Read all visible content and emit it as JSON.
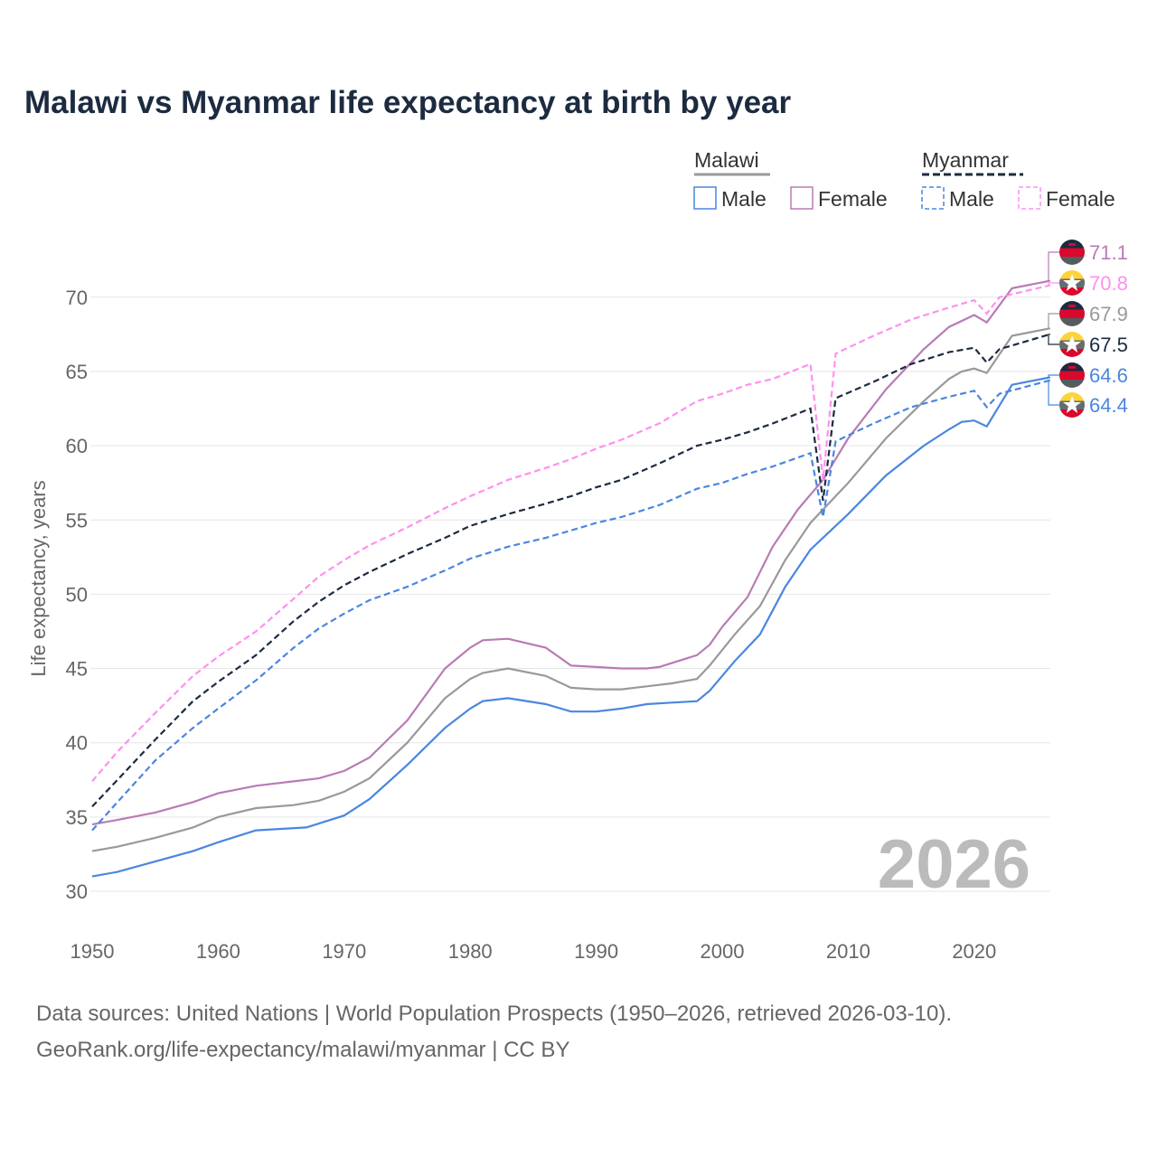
{
  "title": "Malawi vs Myanmar life expectancy at birth by year",
  "footer": {
    "line1": "Data sources: United Nations | World Population Prospects (1950–2026, retrieved 2026-03-10).",
    "line2": "GeoRank.org/life-expectancy/malawi/myanmar | CC BY"
  },
  "watermark": "2026",
  "legend": {
    "groups": [
      {
        "country": "Malawi",
        "items": [
          "Male",
          "Female"
        ],
        "style": "solid"
      },
      {
        "country": "Myanmar",
        "items": [
          "Male",
          "Female"
        ],
        "style": "dashed"
      }
    ]
  },
  "colors": {
    "male": "#4a86e0",
    "female_malawi": "#b87bb5",
    "female_myanmar": "#ff8ff0",
    "total_malawi": "#999999",
    "total_myanmar": "#1c2b40",
    "grid": "#e6e6e6",
    "axis_text": "#666666"
  },
  "chart_data": {
    "type": "line",
    "title": "Malawi vs Myanmar life expectancy at birth by year",
    "xlabel": "",
    "ylabel": "Life expectancy, years",
    "xlim": [
      1950,
      2026
    ],
    "ylim": [
      29,
      73
    ],
    "xticks": [
      1950,
      1960,
      1970,
      1980,
      1990,
      2000,
      2010,
      2020
    ],
    "yticks": [
      30,
      35,
      40,
      45,
      50,
      55,
      60,
      65,
      70
    ],
    "grid": true,
    "legend_position": "top-right",
    "series": [
      {
        "name": "Malawi Female",
        "country": "Malawi",
        "sex": "Female",
        "color": "#b87bb5",
        "dashed": false,
        "end_label": "71.1",
        "x": [
          1950,
          1952,
          1955,
          1958,
          1960,
          1963,
          1966,
          1968,
          1970,
          1972,
          1975,
          1978,
          1980,
          1981,
          1983,
          1986,
          1988,
          1990,
          1992,
          1994,
          1995,
          1998,
          1999,
          2000,
          2002,
          2004,
          2006,
          2008,
          2010,
          2013,
          2016,
          2018,
          2020,
          2021,
          2023,
          2026
        ],
        "y": [
          34.5,
          34.8,
          35.3,
          36.0,
          36.6,
          37.1,
          37.4,
          37.6,
          38.1,
          39.0,
          41.5,
          45.0,
          46.4,
          46.9,
          47.0,
          46.4,
          45.2,
          45.1,
          45.0,
          45.0,
          45.1,
          45.9,
          46.6,
          47.8,
          49.8,
          53.2,
          55.7,
          57.7,
          60.5,
          63.8,
          66.5,
          68.0,
          68.8,
          68.3,
          70.6,
          71.1
        ]
      },
      {
        "name": "Myanmar Female",
        "country": "Myanmar",
        "sex": "Female",
        "color": "#ff8ff0",
        "dashed": true,
        "end_label": "70.8",
        "x": [
          1950,
          1952,
          1955,
          1958,
          1960,
          1963,
          1966,
          1968,
          1970,
          1972,
          1975,
          1978,
          1980,
          1983,
          1986,
          1988,
          1990,
          1992,
          1995,
          1998,
          2000,
          2002,
          2004,
          2007,
          2008,
          2009,
          2012,
          2015,
          2018,
          2020,
          2021,
          2022,
          2026
        ],
        "y": [
          37.4,
          39.4,
          42.0,
          44.5,
          45.8,
          47.5,
          49.7,
          51.2,
          52.3,
          53.3,
          54.5,
          55.8,
          56.6,
          57.7,
          58.5,
          59.1,
          59.8,
          60.4,
          61.5,
          63.0,
          63.5,
          64.1,
          64.5,
          65.5,
          57.7,
          66.2,
          67.4,
          68.5,
          69.3,
          69.8,
          68.9,
          70.0,
          70.8
        ]
      },
      {
        "name": "Malawi",
        "country": "Malawi",
        "sex": "Total",
        "color": "#999999",
        "dashed": false,
        "end_label": "67.9",
        "x": [
          1950,
          1952,
          1955,
          1958,
          1960,
          1963,
          1966,
          1968,
          1970,
          1972,
          1975,
          1978,
          1980,
          1981,
          1983,
          1986,
          1988,
          1990,
          1992,
          1994,
          1996,
          1998,
          1999,
          2001,
          2003,
          2005,
          2007,
          2010,
          2013,
          2016,
          2018,
          2019,
          2020,
          2021,
          2023,
          2026
        ],
        "y": [
          32.7,
          33.0,
          33.6,
          34.3,
          35.0,
          35.6,
          35.8,
          36.1,
          36.7,
          37.6,
          40.0,
          43.0,
          44.3,
          44.7,
          45.0,
          44.5,
          43.7,
          43.6,
          43.6,
          43.8,
          44.0,
          44.3,
          45.2,
          47.3,
          49.2,
          52.3,
          54.8,
          57.5,
          60.5,
          63.0,
          64.5,
          65.0,
          65.2,
          64.9,
          67.4,
          67.9
        ]
      },
      {
        "name": "Myanmar",
        "country": "Myanmar",
        "sex": "Total",
        "color": "#1c2b40",
        "dashed": true,
        "end_label": "67.5",
        "x": [
          1950,
          1952,
          1955,
          1958,
          1960,
          1963,
          1966,
          1968,
          1970,
          1972,
          1975,
          1978,
          1980,
          1983,
          1986,
          1988,
          1990,
          1992,
          1995,
          1998,
          2000,
          2002,
          2004,
          2007,
          2008,
          2009,
          2012,
          2015,
          2018,
          2020,
          2021,
          2022,
          2026
        ],
        "y": [
          35.7,
          37.5,
          40.2,
          42.8,
          44.1,
          45.9,
          48.2,
          49.5,
          50.6,
          51.5,
          52.7,
          53.8,
          54.6,
          55.4,
          56.1,
          56.6,
          57.2,
          57.7,
          58.8,
          60.0,
          60.4,
          60.9,
          61.5,
          62.5,
          56.3,
          63.2,
          64.3,
          65.5,
          66.3,
          66.6,
          65.6,
          66.5,
          67.5
        ]
      },
      {
        "name": "Malawi Male",
        "country": "Malawi",
        "sex": "Male",
        "color": "#4a86e0",
        "dashed": false,
        "end_label": "64.6",
        "x": [
          1950,
          1952,
          1955,
          1958,
          1960,
          1963,
          1967,
          1970,
          1972,
          1975,
          1978,
          1980,
          1981,
          1983,
          1986,
          1988,
          1990,
          1992,
          1994,
          1996,
          1998,
          1999,
          2001,
          2003,
          2005,
          2007,
          2010,
          2013,
          2016,
          2018,
          2019,
          2020,
          2021,
          2023,
          2026
        ],
        "y": [
          31.0,
          31.3,
          32.0,
          32.7,
          33.3,
          34.1,
          34.3,
          35.1,
          36.2,
          38.5,
          41.0,
          42.3,
          42.8,
          43.0,
          42.6,
          42.1,
          42.1,
          42.3,
          42.6,
          42.7,
          42.8,
          43.5,
          45.5,
          47.3,
          50.5,
          53.0,
          55.4,
          58.0,
          60.0,
          61.1,
          61.6,
          61.7,
          61.3,
          64.1,
          64.6
        ]
      },
      {
        "name": "Myanmar Male",
        "country": "Myanmar",
        "sex": "Male",
        "color": "#4a86e0",
        "dashed": true,
        "end_label": "64.4",
        "x": [
          1950,
          1952,
          1955,
          1958,
          1960,
          1963,
          1966,
          1968,
          1970,
          1972,
          1975,
          1978,
          1980,
          1983,
          1986,
          1988,
          1990,
          1992,
          1995,
          1998,
          2000,
          2002,
          2004,
          2007,
          2008,
          2009,
          2012,
          2015,
          2018,
          2020,
          2021,
          2022,
          2026
        ],
        "y": [
          34.1,
          36.0,
          38.8,
          41.0,
          42.3,
          44.2,
          46.4,
          47.7,
          48.7,
          49.6,
          50.5,
          51.6,
          52.4,
          53.2,
          53.8,
          54.3,
          54.8,
          55.2,
          56.0,
          57.1,
          57.5,
          58.1,
          58.6,
          59.5,
          55.2,
          60.3,
          61.5,
          62.6,
          63.3,
          63.7,
          62.6,
          63.5,
          64.4
        ]
      }
    ]
  }
}
